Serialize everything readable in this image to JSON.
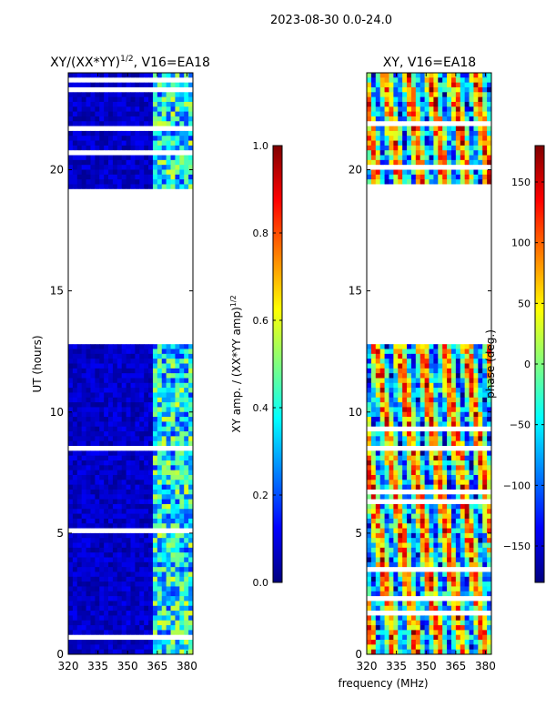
{
  "figure_title": "2023-08-30 0.0-24.0",
  "xlabel_shared": "frequency (MHz)",
  "colors": {
    "background": "#ffffff",
    "axes": "#000000",
    "low": "#00008f",
    "high": "#800000"
  },
  "chart_data": [
    {
      "type": "heatmap",
      "title": "XY/(XX*YY)",
      "title_sup": "1/2",
      "title_suffix": ", V16=EA18",
      "xlabel": "",
      "ylabel": "UT (hours)",
      "xlim": [
        320,
        383
      ],
      "ylim": [
        0,
        24
      ],
      "xticks": [
        320,
        335,
        350,
        365,
        380
      ],
      "yticks": [
        0,
        5,
        10,
        15,
        20
      ],
      "colorscale": "jet",
      "flagged_gaps_hours": [
        [
          12.8,
          19.3
        ]
      ],
      "colorbar": {
        "label": "XY amp. / (XX*YY amp)",
        "label_sup": "1/2",
        "range": [
          0.0,
          1.0
        ],
        "ticks": [
          0.0,
          0.2,
          0.4,
          0.6,
          0.8,
          1.0
        ],
        "tick_labels": [
          "0.0",
          "0.2",
          "0.4",
          "0.6",
          "0.8",
          "1.0"
        ]
      }
    },
    {
      "type": "heatmap",
      "title": "XY, V16=EA18",
      "xlabel": "frequency (MHz)",
      "ylabel": "",
      "xlim": [
        320,
        383
      ],
      "ylim": [
        0,
        24
      ],
      "xticks": [
        320,
        335,
        350,
        365,
        380
      ],
      "yticks": [
        0,
        5,
        10,
        15,
        20
      ],
      "colorscale": "jet",
      "flagged_gaps_hours": [
        [
          12.8,
          19.3
        ]
      ],
      "colorbar": {
        "label": "phase (deg.)",
        "range": [
          -180,
          180
        ],
        "ticks": [
          -150,
          -100,
          -50,
          0,
          50,
          100,
          150
        ],
        "tick_labels": [
          "−150",
          "−100",
          "−50",
          "0",
          "50",
          "100",
          "150"
        ]
      }
    }
  ]
}
